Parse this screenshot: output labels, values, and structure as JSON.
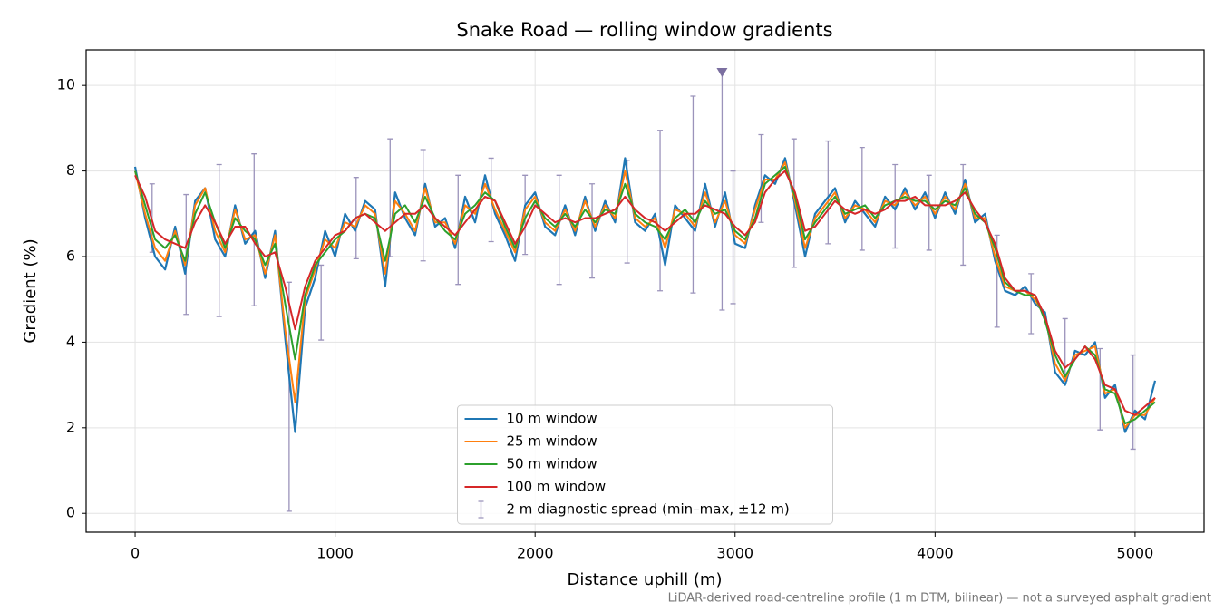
{
  "chart_data": {
    "type": "line",
    "title": "Snake Road — rolling window gradients",
    "x_label": "Distance uphill (m)",
    "y_label": "Gradient (%)",
    "footnote": "LiDAR-derived road-centreline profile (1 m DTM, bilinear) — not a surveyed asphalt gradient",
    "xlim": [
      -245,
      5345
    ],
    "ylim": [
      -0.44,
      10.83
    ],
    "xticks": [
      0,
      1000,
      2000,
      3000,
      4000,
      5000
    ],
    "yticks": [
      0,
      2,
      4,
      6,
      8,
      10
    ],
    "grid": true,
    "legend": "lower center",
    "x": [
      0,
      50,
      100,
      150,
      200,
      250,
      300,
      350,
      400,
      450,
      500,
      550,
      600,
      650,
      700,
      750,
      800,
      850,
      900,
      950,
      1000,
      1050,
      1100,
      1150,
      1200,
      1250,
      1300,
      1350,
      1400,
      1450,
      1500,
      1550,
      1600,
      1650,
      1700,
      1750,
      1800,
      1850,
      1900,
      1950,
      2000,
      2050,
      2100,
      2150,
      2200,
      2250,
      2300,
      2350,
      2400,
      2450,
      2500,
      2550,
      2600,
      2650,
      2700,
      2750,
      2800,
      2850,
      2900,
      2950,
      3000,
      3050,
      3100,
      3150,
      3200,
      3250,
      3300,
      3350,
      3400,
      3450,
      3500,
      3550,
      3600,
      3650,
      3700,
      3750,
      3800,
      3850,
      3900,
      3950,
      4000,
      4050,
      4100,
      4150,
      4200,
      4250,
      4300,
      4350,
      4400,
      4450,
      4500,
      4550,
      4600,
      4650,
      4700,
      4750,
      4800,
      4850,
      4900,
      4950,
      5000,
      5050,
      5100
    ],
    "series": [
      {
        "name": "10 m window",
        "color": "#1f77b4",
        "values": [
          8.1,
          6.9,
          6.0,
          5.7,
          6.7,
          5.6,
          7.3,
          7.6,
          6.4,
          6.0,
          7.2,
          6.3,
          6.6,
          5.5,
          6.6,
          4.1,
          1.9,
          4.8,
          5.5,
          6.6,
          6.0,
          7.0,
          6.6,
          7.3,
          7.1,
          5.3,
          7.5,
          6.9,
          6.5,
          7.7,
          6.7,
          6.9,
          6.2,
          7.4,
          6.8,
          7.9,
          7.0,
          6.5,
          5.9,
          7.2,
          7.5,
          6.7,
          6.5,
          7.2,
          6.5,
          7.4,
          6.6,
          7.3,
          6.8,
          8.3,
          6.8,
          6.6,
          7.0,
          5.8,
          7.2,
          6.9,
          6.6,
          7.7,
          6.7,
          7.5,
          6.3,
          6.2,
          7.2,
          7.9,
          7.7,
          8.3,
          7.2,
          6.0,
          7.0,
          7.3,
          7.6,
          6.8,
          7.3,
          7.0,
          6.7,
          7.4,
          7.1,
          7.6,
          7.1,
          7.5,
          6.9,
          7.5,
          7.0,
          7.8,
          6.8,
          7.0,
          5.9,
          5.2,
          5.1,
          5.3,
          4.9,
          4.7,
          3.3,
          3.0,
          3.8,
          3.7,
          4.0,
          2.7,
          3.0,
          1.9,
          2.4,
          2.2,
          3.1
        ]
      },
      {
        "name": "25 m window",
        "color": "#ff7f0e",
        "values": [
          8.0,
          7.0,
          6.2,
          5.9,
          6.6,
          5.8,
          7.2,
          7.6,
          6.6,
          6.1,
          7.1,
          6.4,
          6.5,
          5.6,
          6.5,
          4.3,
          2.6,
          5.0,
          5.7,
          6.4,
          6.2,
          6.8,
          6.7,
          7.2,
          7.0,
          5.6,
          7.3,
          7.0,
          6.6,
          7.6,
          6.8,
          6.8,
          6.3,
          7.2,
          7.0,
          7.7,
          7.1,
          6.6,
          6.1,
          7.1,
          7.4,
          6.8,
          6.6,
          7.1,
          6.6,
          7.3,
          6.7,
          7.2,
          6.9,
          8.0,
          6.9,
          6.7,
          6.9,
          6.2,
          7.1,
          7.0,
          6.7,
          7.5,
          6.8,
          7.3,
          6.5,
          6.3,
          7.1,
          7.8,
          7.8,
          8.2,
          7.3,
          6.2,
          6.9,
          7.2,
          7.5,
          6.9,
          7.2,
          7.1,
          6.8,
          7.3,
          7.2,
          7.5,
          7.2,
          7.4,
          7.0,
          7.4,
          7.1,
          7.7,
          6.9,
          6.9,
          6.0,
          5.3,
          5.2,
          5.2,
          5.0,
          4.6,
          3.5,
          3.1,
          3.7,
          3.8,
          3.9,
          2.8,
          2.9,
          2.0,
          2.3,
          2.3,
          2.7
        ]
      },
      {
        "name": "50 m window",
        "color": "#2ca02c",
        "values": [
          8.0,
          7.2,
          6.4,
          6.2,
          6.5,
          5.9,
          7.0,
          7.5,
          6.8,
          6.2,
          6.9,
          6.6,
          6.4,
          5.8,
          6.3,
          4.9,
          3.6,
          5.1,
          5.8,
          6.1,
          6.4,
          6.6,
          6.9,
          7.0,
          6.9,
          5.9,
          7.0,
          7.2,
          6.8,
          7.4,
          6.9,
          6.6,
          6.4,
          7.0,
          7.2,
          7.5,
          7.3,
          6.7,
          6.2,
          6.9,
          7.3,
          6.9,
          6.7,
          7.0,
          6.7,
          7.1,
          6.8,
          7.1,
          7.0,
          7.7,
          7.0,
          6.8,
          6.7,
          6.4,
          6.9,
          7.1,
          6.8,
          7.3,
          7.0,
          7.1,
          6.6,
          6.4,
          6.9,
          7.7,
          7.9,
          8.1,
          7.4,
          6.4,
          6.8,
          7.1,
          7.4,
          7.0,
          7.1,
          7.2,
          6.9,
          7.2,
          7.3,
          7.4,
          7.3,
          7.3,
          7.1,
          7.3,
          7.2,
          7.6,
          7.0,
          6.8,
          6.2,
          5.4,
          5.2,
          5.1,
          5.1,
          4.5,
          3.7,
          3.2,
          3.6,
          3.9,
          3.7,
          2.9,
          2.8,
          2.1,
          2.2,
          2.4,
          2.6
        ]
      },
      {
        "name": "100 m window",
        "color": "#d62728",
        "values": [
          7.9,
          7.4,
          6.6,
          6.4,
          6.3,
          6.2,
          6.8,
          7.2,
          6.8,
          6.3,
          6.7,
          6.7,
          6.3,
          6.0,
          6.1,
          5.3,
          4.3,
          5.3,
          5.9,
          6.2,
          6.5,
          6.6,
          6.9,
          7.0,
          6.8,
          6.6,
          6.8,
          7.0,
          7.0,
          7.2,
          6.9,
          6.7,
          6.5,
          6.8,
          7.1,
          7.4,
          7.3,
          6.8,
          6.3,
          6.7,
          7.2,
          7.0,
          6.8,
          6.9,
          6.8,
          6.9,
          6.9,
          7.0,
          7.1,
          7.4,
          7.1,
          6.9,
          6.8,
          6.6,
          6.8,
          7.0,
          7.0,
          7.2,
          7.1,
          7.0,
          6.7,
          6.5,
          6.8,
          7.5,
          7.8,
          8.0,
          7.5,
          6.6,
          6.7,
          7.0,
          7.3,
          7.1,
          7.0,
          7.1,
          7.0,
          7.1,
          7.3,
          7.3,
          7.4,
          7.2,
          7.2,
          7.2,
          7.3,
          7.5,
          7.1,
          6.8,
          6.3,
          5.5,
          5.2,
          5.2,
          5.1,
          4.6,
          3.8,
          3.4,
          3.6,
          3.9,
          3.6,
          3.0,
          2.9,
          2.4,
          2.3,
          2.5,
          2.7
        ]
      }
    ],
    "errorbars": {
      "name": "2 m diagnostic spread (min–max, ±12 m)",
      "color": "#9b93bb",
      "x": [
        85,
        255,
        420,
        595,
        770,
        930,
        1105,
        1275,
        1440,
        1615,
        1780,
        1950,
        2120,
        2285,
        2460,
        2625,
        2790,
        2935,
        2990,
        3130,
        3295,
        3465,
        3635,
        3800,
        3970,
        4140,
        4310,
        4480,
        4650,
        4825,
        4990
      ],
      "low": [
        6.1,
        4.65,
        4.6,
        4.85,
        0.05,
        4.05,
        5.95,
        6.0,
        5.9,
        5.35,
        6.35,
        6.05,
        5.35,
        5.5,
        5.85,
        5.2,
        5.15,
        4.75,
        4.9,
        6.8,
        5.75,
        6.3,
        6.15,
        6.2,
        6.15,
        5.8,
        4.35,
        4.2,
        3.1,
        1.95,
        1.5
      ],
      "high": [
        7.7,
        7.45,
        8.15,
        8.4,
        5.4,
        5.8,
        7.85,
        8.75,
        8.5,
        7.9,
        8.3,
        7.9,
        7.9,
        7.7,
        8.25,
        8.95,
        9.75,
        10.3,
        8.0,
        8.85,
        8.75,
        8.7,
        8.55,
        8.15,
        7.9,
        8.15,
        6.5,
        5.6,
        4.55,
        3.85,
        3.7
      ]
    },
    "marker": {
      "x": 2935,
      "y": 10.3,
      "color": "#7b6fa0"
    }
  }
}
